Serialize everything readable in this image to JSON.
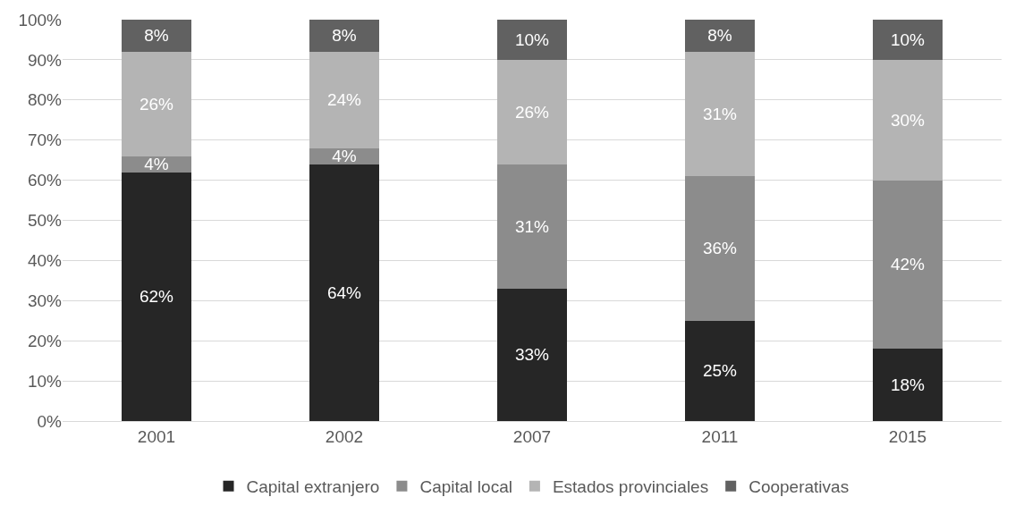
{
  "chart_data": {
    "type": "bar",
    "stacked": true,
    "categories": [
      "2001",
      "2002",
      "2007",
      "2011",
      "2015"
    ],
    "series": [
      {
        "name": "Capital extranjero",
        "color": "#262626",
        "values": [
          62,
          64,
          33,
          25,
          18
        ],
        "value_labels": [
          "62%",
          "64%",
          "33%",
          "25%",
          "18%"
        ]
      },
      {
        "name": "Capital local",
        "color": "#8c8c8c",
        "values": [
          4,
          4,
          31,
          36,
          42
        ],
        "value_labels": [
          "4%",
          "4%",
          "31%",
          "36%",
          "42%"
        ]
      },
      {
        "name": "Estados provinciales",
        "color": "#b4b4b4",
        "values": [
          26,
          24,
          26,
          31,
          30
        ],
        "value_labels": [
          "26%",
          "24%",
          "26%",
          "31%",
          "30%"
        ]
      },
      {
        "name": "Cooperativas",
        "color": "#616161",
        "values": [
          8,
          8,
          10,
          8,
          10
        ],
        "value_labels": [
          "8%",
          "8%",
          "10%",
          "8%",
          "10%"
        ]
      }
    ],
    "ylim": [
      0,
      100
    ],
    "yticks": [
      {
        "value": 0,
        "label": "0%"
      },
      {
        "value": 10,
        "label": "10%"
      },
      {
        "value": 20,
        "label": "20%"
      },
      {
        "value": 30,
        "label": "30%"
      },
      {
        "value": 40,
        "label": "40%"
      },
      {
        "value": 50,
        "label": "50%"
      },
      {
        "value": 60,
        "label": "60%"
      },
      {
        "value": 70,
        "label": "70%"
      },
      {
        "value": 80,
        "label": "80%"
      },
      {
        "value": 90,
        "label": "90%"
      },
      {
        "value": 100,
        "label": "100%"
      }
    ],
    "grid": "y",
    "legend": "bottom"
  }
}
